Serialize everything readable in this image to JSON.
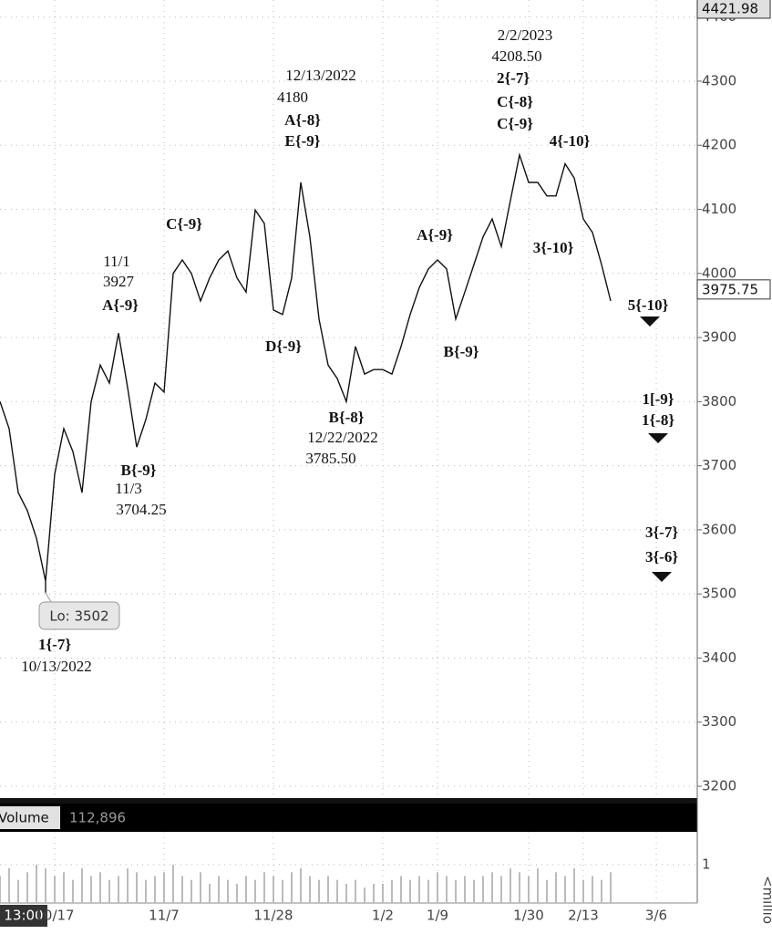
{
  "chart_data": [
    {
      "type": "line",
      "color": "#111111",
      "categories": [
        null,
        null,
        null,
        null,
        null,
        null,
        "10/17",
        null,
        null,
        null,
        null,
        null,
        null,
        null,
        null,
        null,
        null,
        null,
        "11/7",
        null,
        null,
        null,
        null,
        null,
        null,
        null,
        null,
        null,
        null,
        null,
        "11/28",
        null,
        null,
        null,
        null,
        null,
        null,
        null,
        null,
        null,
        null,
        null,
        "1/2",
        null,
        null,
        null,
        null,
        null,
        "1/9",
        null,
        null,
        null,
        null,
        null,
        null,
        null,
        null,
        null,
        "1/30",
        null,
        null,
        null,
        null,
        null,
        "2/13",
        null,
        null,
        null,
        null,
        null,
        null,
        null,
        "3/6"
      ],
      "values": [
        3800,
        3758,
        3658,
        3630,
        3587,
        3520,
        3687,
        3758,
        3722,
        3658,
        3800,
        3857,
        3829,
        3907,
        3822,
        3729,
        3772,
        3829,
        3815,
        4000,
        4021,
        4000,
        3957,
        3993,
        4021,
        4035,
        3993,
        3971,
        4099,
        4078,
        3943,
        3936,
        3993,
        4142,
        4057,
        3929,
        3857,
        3836,
        3800,
        3886,
        3843,
        3850,
        3850,
        3843,
        3886,
        3936,
        3978,
        4007,
        4021,
        4007,
        3929,
        3971,
        4014,
        4057,
        4085,
        4042,
        4114,
        4185,
        4142,
        4142,
        4121,
        4121,
        4171,
        4149,
        4085,
        4064,
        4014,
        3957,
        null,
        null,
        null,
        null,
        null
      ],
      "ylim": [
        3181.5,
        4426.6
      ],
      "yticks": [
        3200,
        3300,
        3400,
        3500,
        3600,
        3700,
        3800,
        3900,
        4000,
        4100,
        4200,
        4300,
        4400
      ],
      "grid": true,
      "high_marker": 4421.98,
      "last_price": 3975.75,
      "low": {
        "value": 3502,
        "label": "Lo: 3502"
      },
      "time_label": "13:00",
      "annotations": [
        [
          "1{-7}",
          "10/13/2022"
        ],
        [
          "11/1",
          "3927",
          "A{-9}"
        ],
        [
          "B{-9}",
          "11/3",
          "3704.25"
        ],
        [
          "C{-9}"
        ],
        [
          "12/13/2022",
          "4180",
          "A{-8}",
          "E{-9}"
        ],
        [
          "D{-9}"
        ],
        [
          "B{-8}",
          "12/22/2022",
          "3785.50"
        ],
        [
          "A{-9}"
        ],
        [
          "B{-9}"
        ],
        [
          "2/2/2023",
          "4208.50",
          "2{-7}",
          "C{-8}",
          "C{-9}"
        ],
        [
          "4{-10}"
        ],
        [
          "3{-10}"
        ],
        [
          "5{-10}"
        ],
        [
          "1[-9}",
          "1{-8}"
        ],
        [
          "3{-7}",
          "3{-6}"
        ]
      ]
    },
    {
      "type": "bar",
      "title": "Volume",
      "readout": "112,896",
      "unit": "<millio",
      "color": "#bbbbbb",
      "values": [
        0.7,
        0.9,
        0.6,
        0.8,
        1.0,
        0.9,
        0.7,
        0.8,
        0.6,
        0.9,
        0.7,
        0.8,
        0.6,
        0.7,
        0.9,
        0.8,
        0.6,
        0.7,
        0.8,
        1.0,
        0.7,
        0.6,
        0.8,
        0.5,
        0.7,
        0.6,
        0.5,
        0.7,
        0.6,
        0.8,
        0.7,
        0.6,
        0.8,
        0.9,
        0.7,
        0.6,
        0.7,
        0.6,
        0.5,
        0.6,
        0.4,
        0.5,
        0.5,
        0.6,
        0.7,
        0.6,
        0.7,
        0.6,
        0.8,
        0.7,
        0.6,
        0.7,
        0.6,
        0.7,
        0.8,
        0.7,
        0.9,
        0.8,
        0.7,
        0.9,
        0.6,
        0.8,
        0.7,
        0.9,
        0.6,
        0.7,
        0.6,
        0.8,
        null,
        null,
        null,
        null,
        null
      ],
      "ylim": [
        0,
        1.85
      ],
      "yticks": [
        1
      ]
    }
  ]
}
